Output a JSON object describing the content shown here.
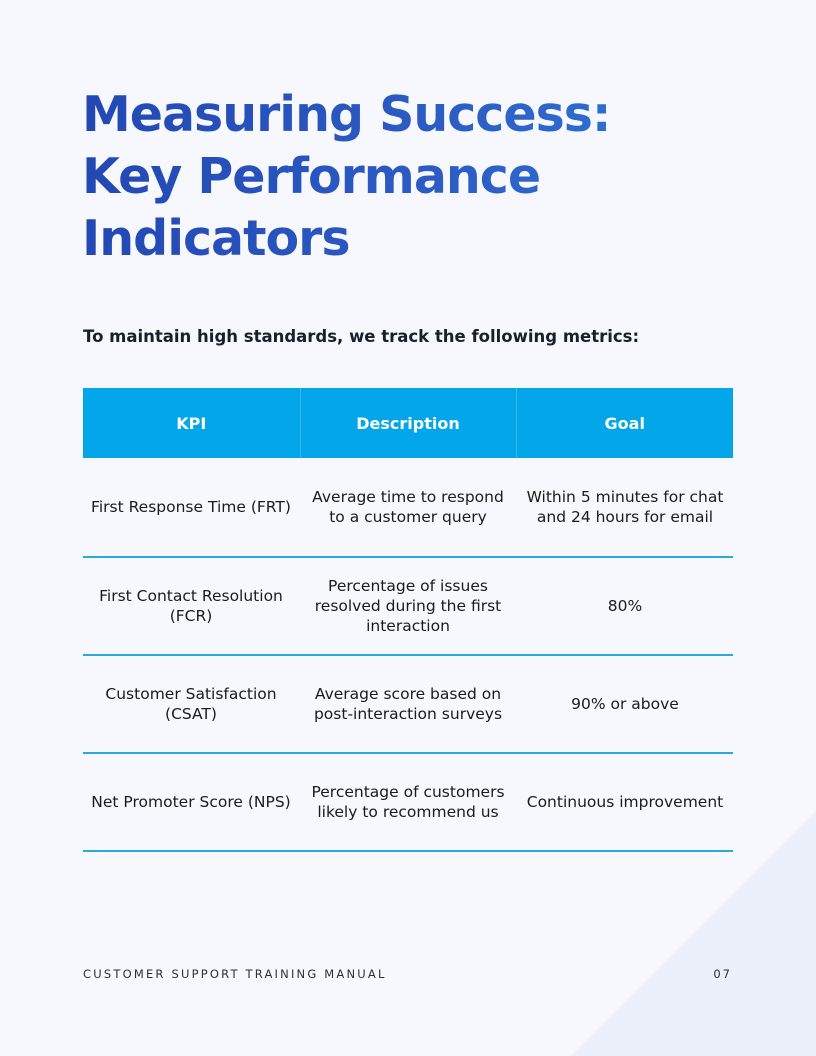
{
  "page": {
    "title_lines": [
      "Measuring Success:",
      "Key Performance",
      "Indicators"
    ],
    "intro": "To maintain high standards, we track the following metrics:",
    "footer_title": "CUSTOMER SUPPORT TRAINING MANUAL",
    "page_number": "07"
  },
  "colors": {
    "title_start": "#2348b3",
    "title_end": "#2f7bd8",
    "header_bg": "#03a6e8",
    "row_divider": "#29a9de",
    "page_bg": "#f6f8fd"
  },
  "table": {
    "headers": [
      "KPI",
      "Description",
      "Goal"
    ],
    "rows": [
      {
        "kpi": "First Response Time (FRT)",
        "description": "Average time to respond to a customer query",
        "goal": "Within 5 minutes for chat and 24 hours for email"
      },
      {
        "kpi": "First Contact Resolution (FCR)",
        "description": "Percentage of issues resolved during the first interaction",
        "goal": "80%"
      },
      {
        "kpi": "Customer Satisfaction (CSAT)",
        "description": "Average score based on post-interaction surveys",
        "goal": "90% or above"
      },
      {
        "kpi": "Net Promoter Score (NPS)",
        "description": "Percentage of customers likely to recommend us",
        "goal": "Continuous improvement"
      }
    ]
  }
}
